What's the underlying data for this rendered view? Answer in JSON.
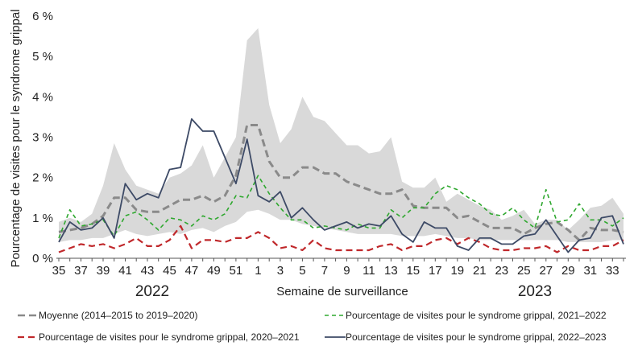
{
  "chart_data": {
    "type": "line",
    "ylabel": "Pourcentage de visites pour le syndrome grippal",
    "xlabel": "Semaine de surveillance",
    "year_labels": [
      "2022",
      "2023"
    ],
    "ylim": [
      0,
      6
    ],
    "y_ticks": [
      "0 %",
      "1 %",
      "2 %",
      "3 %",
      "4 %",
      "5 %",
      "6 %"
    ],
    "x_weeks": [
      35,
      36,
      37,
      38,
      39,
      40,
      41,
      42,
      43,
      44,
      45,
      46,
      47,
      48,
      49,
      50,
      51,
      52,
      1,
      2,
      3,
      4,
      5,
      6,
      7,
      8,
      9,
      10,
      11,
      12,
      13,
      14,
      15,
      16,
      17,
      18,
      19,
      20,
      21,
      22,
      23,
      24,
      25,
      26,
      27,
      28,
      29,
      30,
      31,
      32,
      33,
      34
    ],
    "x_tick_labels": [
      "35",
      "37",
      "39",
      "41",
      "43",
      "45",
      "47",
      "49",
      "51",
      "1",
      "3",
      "5",
      "7",
      "9",
      "11",
      "13",
      "15",
      "17",
      "19",
      "21",
      "23",
      "25",
      "27",
      "29",
      "31",
      "33"
    ],
    "grid": false,
    "band": {
      "name": "range",
      "color": "#d9d9d9",
      "upper": [
        0.9,
        1.0,
        0.9,
        1.1,
        1.8,
        2.85,
        2.2,
        1.8,
        1.7,
        1.6,
        2.0,
        2.1,
        2.3,
        2.8,
        2.0,
        2.5,
        3.0,
        5.4,
        5.7,
        3.8,
        2.85,
        3.2,
        4.0,
        3.5,
        3.4,
        3.1,
        2.8,
        2.8,
        2.6,
        2.65,
        3.0,
        1.9,
        1.75,
        1.75,
        2.0,
        1.4,
        1.6,
        1.45,
        1.3,
        1.2,
        0.95,
        1.05,
        1.2,
        0.85,
        0.95,
        0.95,
        0.7,
        0.95,
        1.25,
        1.3,
        1.5,
        1.1
      ],
      "lower": [
        0.4,
        0.45,
        0.45,
        0.5,
        0.5,
        0.6,
        0.7,
        0.6,
        0.55,
        0.6,
        0.65,
        0.6,
        0.7,
        0.75,
        0.65,
        0.8,
        0.9,
        1.15,
        1.2,
        1.1,
        0.95,
        0.95,
        0.85,
        0.8,
        0.75,
        0.7,
        0.65,
        0.6,
        0.6,
        0.6,
        0.6,
        0.55,
        0.55,
        0.55,
        0.6,
        0.55,
        0.5,
        0.5,
        0.45,
        0.45,
        0.45,
        0.45,
        0.45,
        0.45,
        0.45,
        0.45,
        0.4,
        0.4,
        0.4,
        0.4,
        0.45,
        0.45
      ]
    },
    "series": [
      {
        "name": "Moyenne (2014–2015 to 2019–2020)",
        "color": "#8a8a8a",
        "dash": "9,5",
        "width": 3,
        "values": [
          0.65,
          0.7,
          0.75,
          0.85,
          1.05,
          1.5,
          1.5,
          1.2,
          1.15,
          1.15,
          1.3,
          1.45,
          1.45,
          1.55,
          1.4,
          1.55,
          2.05,
          3.3,
          3.3,
          2.4,
          2.0,
          2.0,
          2.25,
          2.25,
          2.1,
          2.1,
          1.9,
          1.8,
          1.7,
          1.6,
          1.6,
          1.7,
          1.3,
          1.25,
          1.25,
          1.25,
          1.0,
          1.05,
          0.9,
          0.75,
          0.75,
          0.75,
          0.6,
          0.75,
          0.85,
          0.9,
          0.7,
          0.45,
          0.75,
          0.7,
          0.7,
          0.65
        ]
      },
      {
        "name": "Pourcentage de visites pour le syndrome grippal, 2021–2022",
        "color": "#2fa82f",
        "dash": "5,4",
        "width": 1.6,
        "values": [
          0.5,
          1.2,
          0.8,
          0.85,
          0.95,
          0.55,
          1.05,
          1.15,
          0.95,
          0.7,
          1.0,
          0.95,
          0.8,
          1.05,
          0.95,
          1.1,
          1.55,
          1.5,
          2.05,
          1.6,
          1.25,
          0.95,
          0.95,
          0.75,
          0.8,
          0.75,
          0.7,
          0.85,
          0.75,
          0.75,
          1.2,
          1.0,
          1.25,
          1.25,
          1.6,
          1.8,
          1.7,
          1.5,
          1.35,
          1.1,
          1.05,
          1.25,
          0.95,
          0.75,
          1.7,
          0.9,
          0.95,
          1.35,
          0.95,
          0.95,
          0.8,
          1.0
        ]
      },
      {
        "name": "Pourcentage de visites pour le syndrome grippal, 2020–2021",
        "color": "#c0282b",
        "dash": "8,5",
        "width": 2.2,
        "values": [
          0.15,
          0.25,
          0.35,
          0.3,
          0.35,
          0.25,
          0.35,
          0.5,
          0.3,
          0.3,
          0.45,
          0.8,
          0.25,
          0.45,
          0.45,
          0.4,
          0.5,
          0.5,
          0.65,
          0.5,
          0.25,
          0.3,
          0.2,
          0.45,
          0.25,
          0.2,
          0.2,
          0.2,
          0.2,
          0.3,
          0.35,
          0.2,
          0.3,
          0.3,
          0.45,
          0.5,
          0.35,
          0.5,
          0.4,
          0.25,
          0.2,
          0.2,
          0.25,
          0.25,
          0.3,
          0.15,
          0.3,
          0.2,
          0.2,
          0.3,
          0.3,
          0.45
        ]
      },
      {
        "name": "Pourcentage de visites pour le syndrome grippal, 2022–2023",
        "color": "#3d4a66",
        "dash": "",
        "width": 1.8,
        "values": [
          0.4,
          0.9,
          0.7,
          0.75,
          1.0,
          0.5,
          1.85,
          1.45,
          1.6,
          1.5,
          2.2,
          2.25,
          3.45,
          3.15,
          3.15,
          2.5,
          1.85,
          2.95,
          1.55,
          1.4,
          1.65,
          1.0,
          1.25,
          0.95,
          0.7,
          0.8,
          0.9,
          0.75,
          0.85,
          0.8,
          1.05,
          0.6,
          0.4,
          0.9,
          0.75,
          0.75,
          0.3,
          0.2,
          0.5,
          0.5,
          0.35,
          0.35,
          0.55,
          0.6,
          0.95,
          0.55,
          0.15,
          0.45,
          0.5,
          1.0,
          1.05,
          0.35
        ]
      }
    ],
    "legend": {
      "placement": "bottom",
      "order": [
        0,
        1,
        2,
        3
      ]
    }
  }
}
